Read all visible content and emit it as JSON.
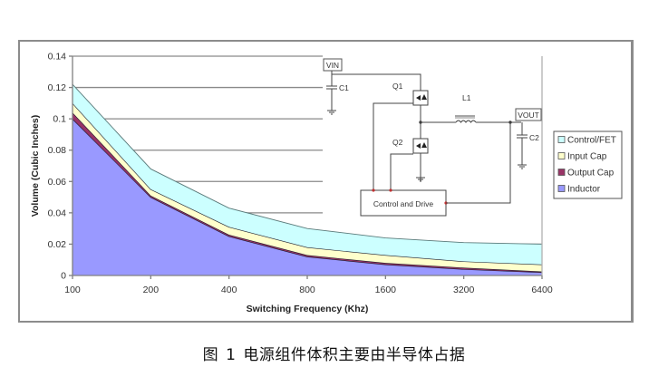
{
  "chart_data": {
    "type": "area",
    "stacked": true,
    "title": "",
    "xlabel": "Switching Frequency (Khz)",
    "ylabel": "Volume (Cubic Inches)",
    "categories": [
      "100",
      "200",
      "400",
      "800",
      "1600",
      "3200",
      "6400"
    ],
    "ylim": [
      0,
      0.14
    ],
    "yticks": [
      "0",
      "0.02",
      "0.04",
      "0.06",
      "0.08",
      "0.1",
      "0.12",
      "0.14"
    ],
    "grid": true,
    "legend_position": "right",
    "series": [
      {
        "name": "Inductor",
        "color": "#9999FF",
        "values": [
          0.1,
          0.05,
          0.025,
          0.012,
          0.007,
          0.004,
          0.002
        ]
      },
      {
        "name": "Output Cap",
        "color": "#993366",
        "values": [
          0.004,
          0.001,
          0.001,
          0.001,
          0.001,
          0.001,
          0.0005
        ]
      },
      {
        "name": "Input Cap",
        "color": "#FFFFCC",
        "values": [
          0.006,
          0.004,
          0.005,
          0.005,
          0.005,
          0.004,
          0.0045
        ]
      },
      {
        "name": "Control/FET",
        "color": "#CCFFFF",
        "values": [
          0.012,
          0.013,
          0.012,
          0.012,
          0.011,
          0.012,
          0.013
        ]
      }
    ],
    "totals": [
      0.122,
      0.068,
      0.043,
      0.03,
      0.024,
      0.021,
      0.02
    ]
  },
  "legend": {
    "items": [
      {
        "label": "Control/FET",
        "color": "#CCFFFF"
      },
      {
        "label": "Input Cap",
        "color": "#FFFFCC"
      },
      {
        "label": "Output Cap",
        "color": "#993366"
      },
      {
        "label": "Inductor",
        "color": "#9999FF"
      }
    ]
  },
  "circuit": {
    "vin_label": "VIN",
    "vout_label": "VOUT",
    "c1_label": "C1",
    "c2_label": "C2",
    "q1_label": "Q1",
    "q2_label": "Q2",
    "l1_label": "L1",
    "control_label": "Control and Drive"
  },
  "caption": {
    "prefix": "图",
    "number": "1",
    "text": "电源组件体积主要由半导体占据"
  }
}
